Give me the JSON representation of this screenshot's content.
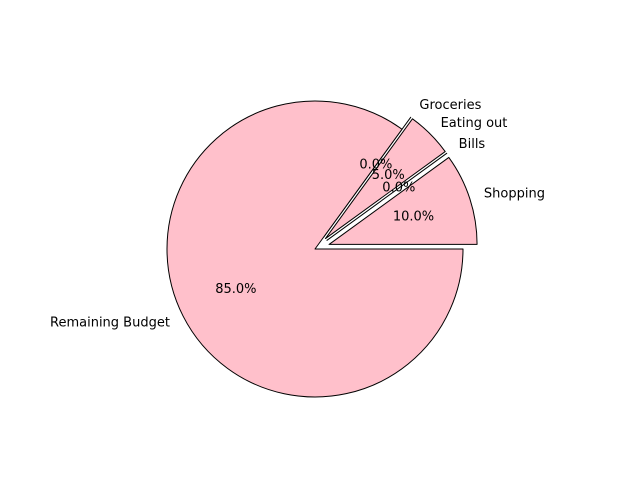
{
  "chart_data": {
    "type": "pie",
    "categories": [
      "Shopping",
      "Bills",
      "Eating out",
      "Groceries",
      "Remaining Budget"
    ],
    "values": [
      10.0,
      0.0,
      5.0,
      0.0,
      85.0
    ],
    "pct_labels": [
      "10.0%",
      "0.0%",
      "5.0%",
      "0.0%",
      "85.0%"
    ],
    "exploded": [
      "Shopping",
      "Bills",
      "Eating out",
      "Groceries"
    ],
    "start_angle_deg": 0,
    "direction": "counterclockwise",
    "colors": {
      "slice_fill": "#ffc0cb",
      "edge": "#000000"
    }
  }
}
